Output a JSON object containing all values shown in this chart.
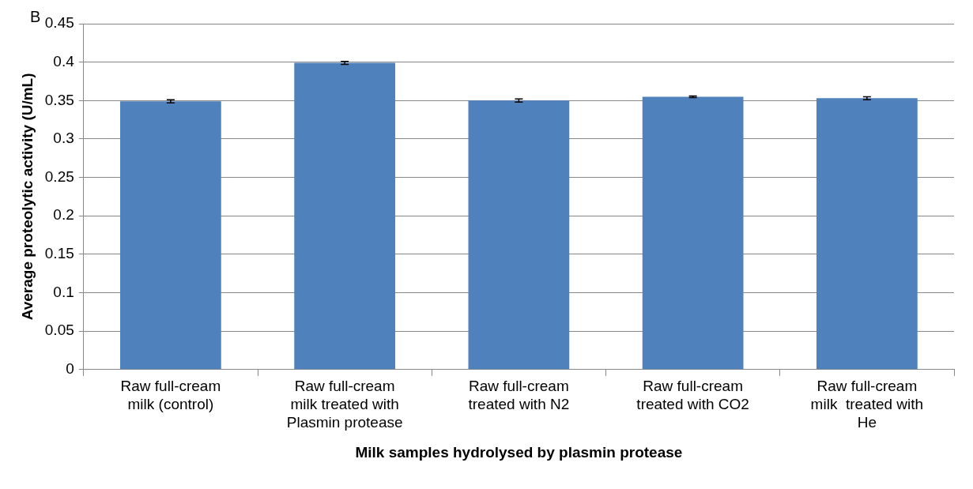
{
  "chart_data": {
    "type": "bar",
    "xlabel": "Milk samples hydrolysed by plasmin protease",
    "ylabel": "Average proteolytic activity (U/mL)",
    "annotations": [
      "B"
    ],
    "categories": [
      "Raw full-cream milk (control)",
      "Raw full-cream milk treated with Plasmin protease",
      "Raw full-cream treated with N2",
      "Raw full-cream treated with CO2",
      "Raw full-cream milk  treated with He"
    ],
    "values": [
      0.349,
      0.399,
      0.35,
      0.355,
      0.353
    ],
    "errors": [
      0.002,
      0.002,
      0.002,
      0.001,
      0.002
    ],
    "color": "#4f81bd",
    "ylim": [
      0,
      0.45
    ],
    "yticks": [
      0,
      0.05,
      0.1,
      0.15,
      0.2,
      0.25,
      0.3,
      0.35,
      0.4,
      0.45
    ],
    "grid": "y",
    "legend": false
  }
}
